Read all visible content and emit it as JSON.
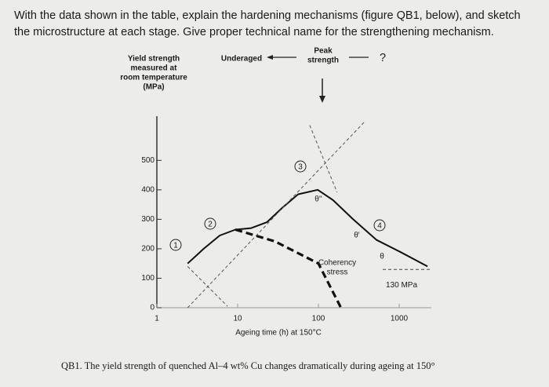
{
  "question": "With the data shown in the table, explain the hardening mechanisms (figure QB1, below), and sketch the microstructure at each stage. Give proper technical name for the strengthening mechanism.",
  "caption": "QB1. The yield strength of quenched Al–4 wt% Cu changes dramatically during ageing at 150°",
  "chart_data": {
    "type": "line",
    "ylabel": [
      "Yield strength",
      "measured at",
      "room temperature",
      "(MPa)"
    ],
    "xlabel": "Ageing time (h) at 150°C",
    "xlog": true,
    "xlim": [
      1,
      2500
    ],
    "xticks": [
      1,
      10,
      100,
      1000
    ],
    "ylim": [
      0,
      650
    ],
    "yticks": [
      0,
      100,
      200,
      300,
      400,
      500
    ],
    "series": [
      {
        "color": "#111111",
        "style": "solid",
        "x": [
          2.4,
          3.8,
          6,
          9.4,
          14.7,
          23,
          36,
          56,
          98,
          152,
          269,
          525,
          1020,
          2240
        ],
        "values": [
          150,
          200,
          245,
          265,
          270,
          290,
          340,
          385,
          400,
          365,
          300,
          230,
          190,
          140
        ]
      },
      {
        "color": "#111111",
        "style": "thick-dash",
        "x": [
          9.4,
          29,
          100,
          190
        ],
        "values": [
          265,
          225,
          150,
          0
        ]
      },
      {
        "color": "#555555",
        "style": "thin-dash",
        "x": [
          2.4,
          370
        ],
        "values": [
          0,
          630
        ]
      },
      {
        "color": "#555555",
        "style": "thin-dash",
        "x": [
          2.4,
          7.5
        ],
        "values": [
          140,
          5
        ]
      },
      {
        "color": "#555555",
        "style": "thin-dash",
        "x": [
          78,
          170
        ],
        "values": [
          619,
          392
        ]
      }
    ],
    "reference_line": {
      "value": 130,
      "label": "130 MPa"
    },
    "annotations": [
      "Underaged",
      "Peak",
      "strength",
      "?",
      "1",
      "2",
      "3",
      "4",
      "Coherency",
      "stress",
      "θ''",
      "θ'",
      "θ"
    ]
  }
}
